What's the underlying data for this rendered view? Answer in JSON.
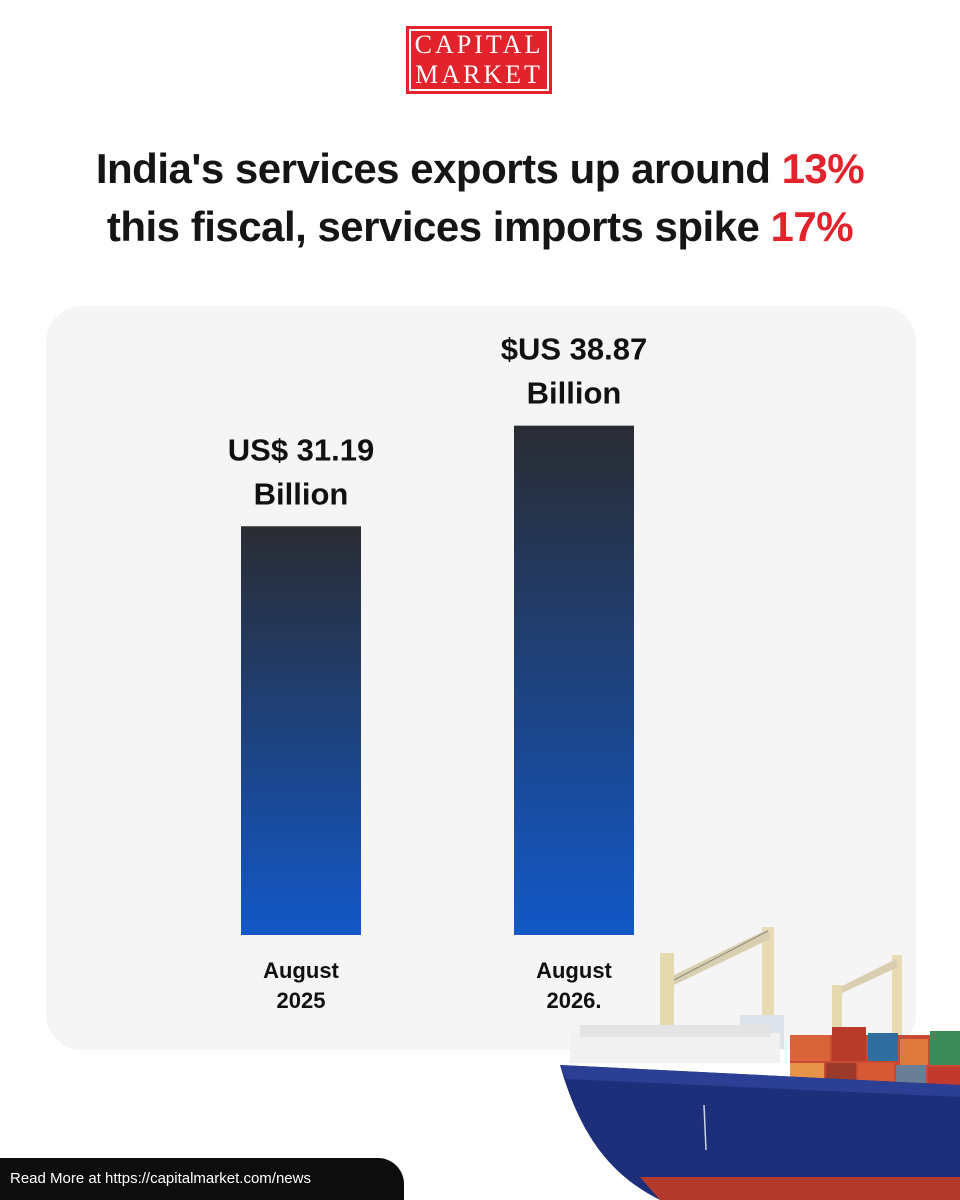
{
  "brand": {
    "line1": "CAPITAL",
    "line2": "MARKET",
    "color": "#e3232b"
  },
  "headline": {
    "line1_text": "India's services exports up around ",
    "line1_highlight": "13%",
    "line2_text": "this fiscal, services imports spike ",
    "line2_highlight": "17%",
    "highlight_color": "#e3232b"
  },
  "chart_data": {
    "type": "bar",
    "categories": [
      [
        "August",
        "2025"
      ],
      [
        "August",
        "2026."
      ]
    ],
    "values": [
      31.19,
      38.87
    ],
    "data_labels": [
      [
        "US$ 31.19",
        "Billion"
      ],
      [
        "$US 38.87",
        "Billion"
      ]
    ],
    "title": "",
    "xlabel": "",
    "ylabel": "",
    "ylim": [
      0,
      42.2
    ],
    "grid": false,
    "bar_gradient": [
      "#2a2c33",
      "#1258c8"
    ]
  },
  "footer": {
    "text": "Read More at https://capitalmarket.com/news"
  },
  "illustration": {
    "icon": "cargo-ship-icon"
  }
}
